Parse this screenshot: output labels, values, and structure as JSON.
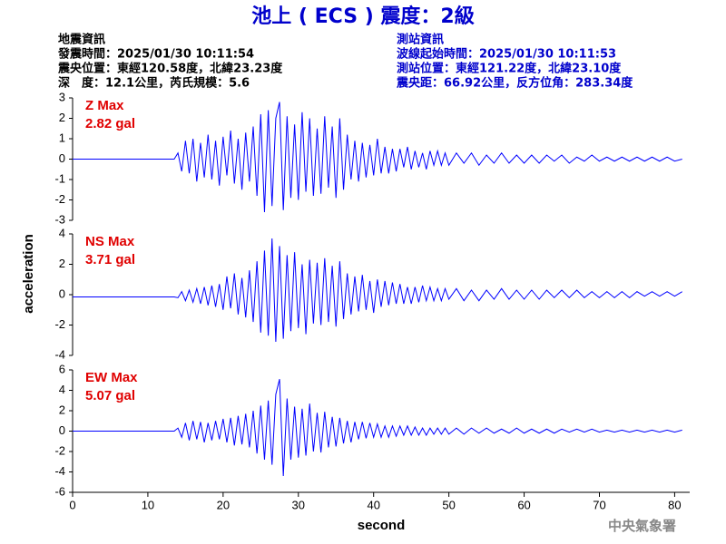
{
  "header": {
    "title": "池上 ( ECS ) 震度：2級",
    "quake_info": [
      "地震資訊",
      "發震時間：2025/01/30 10:11:54",
      "震央位置：東經120.58度，北緯23.23度",
      "深　度：12.1公里，芮氏規模：5.6"
    ],
    "station_info": [
      "測站資訊",
      "波線起始時間：2025/01/30 10:11:53",
      "測站位置：東經121.22度，北緯23.10度",
      "震央距：66.92公里，反方位角：283.34度"
    ],
    "footer": "中央氣象署"
  },
  "chart_data": [
    {
      "type": "line",
      "color": "#0000ff",
      "annotations": [
        "Z Max",
        "2.82 gal"
      ],
      "xlim": [
        0,
        82
      ],
      "ylim": [
        -3,
        3
      ],
      "yticks": [
        -3,
        -2,
        -1,
        0,
        1,
        2,
        3
      ],
      "x": [
        0,
        13.5,
        14,
        14.5,
        15,
        15.5,
        16,
        16.5,
        17,
        17.5,
        18,
        18.5,
        19,
        19.5,
        20,
        20.5,
        21,
        21.5,
        22,
        22.5,
        23,
        23.5,
        24,
        24.5,
        25,
        25.5,
        26,
        26.5,
        27,
        27.5,
        28,
        28.5,
        29,
        29.5,
        30,
        30.5,
        31,
        31.5,
        32,
        32.5,
        33,
        33.5,
        34,
        34.5,
        35,
        35.5,
        36,
        36.5,
        37,
        37.5,
        38,
        38.5,
        39,
        39.5,
        40,
        40.5,
        41,
        41.5,
        42,
        42.5,
        43,
        43.5,
        44,
        44.5,
        45,
        45.5,
        46,
        46.5,
        47,
        47.5,
        48,
        48.5,
        49,
        49.5,
        50,
        51,
        52,
        53,
        54,
        55,
        56,
        57,
        58,
        59,
        60,
        61,
        62,
        63,
        64,
        65,
        66,
        67,
        68,
        69,
        70,
        71,
        72,
        73,
        74,
        75,
        76,
        77,
        78,
        79,
        80,
        81
      ],
      "values": [
        0,
        0,
        0.3,
        -0.6,
        0.9,
        -0.7,
        1.0,
        -1.1,
        0.8,
        -0.9,
        1.2,
        -1.0,
        0.9,
        -1.3,
        1.1,
        -0.8,
        1.4,
        -1.2,
        1.0,
        -1.5,
        1.3,
        -1.1,
        1.6,
        -1.8,
        2.2,
        -2.6,
        2.4,
        -2.3,
        2.0,
        2.8,
        -2.5,
        2.1,
        -1.9,
        1.7,
        -2.0,
        2.3,
        -1.6,
        2.0,
        -1.8,
        1.5,
        -1.7,
        2.1,
        -1.4,
        1.6,
        -1.9,
        2.0,
        -1.5,
        1.2,
        -1.0,
        0.9,
        -1.1,
        0.8,
        -0.9,
        0.7,
        -0.8,
        1.0,
        -0.7,
        0.6,
        -0.7,
        0.5,
        -0.6,
        0.5,
        -0.4,
        0.6,
        -0.5,
        0.4,
        -0.4,
        0.3,
        -0.5,
        0.4,
        -0.3,
        0.4,
        -0.3,
        0.3,
        -0.3,
        0.3,
        -0.2,
        0.3,
        -0.3,
        0.2,
        -0.2,
        0.3,
        -0.2,
        0.2,
        -0.2,
        0.2,
        -0.2,
        0.2,
        -0.1,
        0.2,
        -0.2,
        0.1,
        -0.1,
        0.2,
        -0.1,
        0.1,
        -0.1,
        0.1,
        -0.1,
        0.1,
        -0.1,
        0.1,
        -0.1,
        0.1,
        -0.1,
        0.0
      ]
    },
    {
      "type": "line",
      "color": "#0000ff",
      "annotations": [
        "NS Max",
        "3.71 gal"
      ],
      "ylabel": "acceleration",
      "xlim": [
        0,
        82
      ],
      "ylim": [
        -4,
        4
      ],
      "yticks": [
        -4,
        -2,
        0,
        2,
        4
      ],
      "x": [
        0,
        13.5,
        14,
        14.5,
        15,
        15.5,
        16,
        16.5,
        17,
        17.5,
        18,
        18.5,
        19,
        19.5,
        20,
        20.5,
        21,
        21.5,
        22,
        22.5,
        23,
        23.5,
        24,
        24.5,
        25,
        25.5,
        26,
        26.5,
        27,
        27.5,
        28,
        28.5,
        29,
        29.5,
        30,
        30.5,
        31,
        31.5,
        32,
        32.5,
        33,
        33.5,
        34,
        34.5,
        35,
        35.5,
        36,
        36.5,
        37,
        37.5,
        38,
        38.5,
        39,
        39.5,
        40,
        40.5,
        41,
        41.5,
        42,
        42.5,
        43,
        43.5,
        44,
        44.5,
        45,
        45.5,
        46,
        46.5,
        47,
        47.5,
        48,
        48.5,
        49,
        49.5,
        50,
        51,
        52,
        53,
        54,
        55,
        56,
        57,
        58,
        59,
        60,
        61,
        62,
        63,
        64,
        65,
        66,
        67,
        68,
        69,
        70,
        71,
        72,
        73,
        74,
        75,
        76,
        77,
        78,
        79,
        80,
        81
      ],
      "values": [
        -0.15,
        -0.15,
        -0.2,
        0.2,
        -0.4,
        0.3,
        -0.5,
        0.4,
        -0.6,
        0.5,
        -0.7,
        0.6,
        -0.8,
        0.7,
        -1.0,
        1.2,
        -0.9,
        1.4,
        -1.3,
        1.1,
        -1.5,
        1.6,
        -1.8,
        2.2,
        -2.5,
        2.9,
        -2.7,
        3.7,
        -3.1,
        3.2,
        -2.9,
        2.6,
        -2.4,
        2.8,
        -2.2,
        2.0,
        -2.6,
        2.3,
        -1.9,
        2.1,
        -2.0,
        2.4,
        -1.8,
        1.9,
        -2.1,
        2.2,
        -1.6,
        1.4,
        -1.3,
        1.2,
        -1.1,
        1.3,
        -1.0,
        0.9,
        -1.2,
        1.0,
        -0.8,
        0.9,
        -0.7,
        0.8,
        -0.6,
        0.7,
        -0.6,
        0.5,
        -0.6,
        0.5,
        -0.5,
        0.6,
        -0.4,
        0.5,
        -0.4,
        0.4,
        -0.4,
        0.4,
        -0.3,
        0.4,
        -0.4,
        0.3,
        -0.4,
        0.3,
        -0.3,
        0.4,
        -0.3,
        0.3,
        -0.3,
        0.3,
        -0.3,
        0.3,
        -0.2,
        0.3,
        -0.2,
        0.3,
        -0.2,
        0.2,
        -0.2,
        0.2,
        -0.2,
        0.2,
        -0.2,
        0.2,
        -0.1,
        0.2,
        -0.1,
        0.2,
        -0.1,
        0.2
      ]
    },
    {
      "type": "line",
      "color": "#0000ff",
      "annotations": [
        "EW Max",
        "5.07 gal"
      ],
      "xlabel": "second",
      "xlim": [
        0,
        82
      ],
      "xticks": [
        0,
        10,
        20,
        30,
        40,
        50,
        60,
        70,
        80
      ],
      "ylim": [
        -6,
        6
      ],
      "yticks": [
        -6,
        -4,
        -2,
        0,
        2,
        4,
        6
      ],
      "x": [
        0,
        13.5,
        14,
        14.5,
        15,
        15.5,
        16,
        16.5,
        17,
        17.5,
        18,
        18.5,
        19,
        19.5,
        20,
        20.5,
        21,
        21.5,
        22,
        22.5,
        23,
        23.5,
        24,
        24.5,
        25,
        25.5,
        26,
        26.5,
        27,
        27.5,
        28,
        28.5,
        29,
        29.5,
        30,
        30.5,
        31,
        31.5,
        32,
        32.5,
        33,
        33.5,
        34,
        34.5,
        35,
        35.5,
        36,
        36.5,
        37,
        37.5,
        38,
        38.5,
        39,
        39.5,
        40,
        40.5,
        41,
        41.5,
        42,
        42.5,
        43,
        43.5,
        44,
        44.5,
        45,
        45.5,
        46,
        46.5,
        47,
        47.5,
        48,
        48.5,
        49,
        49.5,
        50,
        51,
        52,
        53,
        54,
        55,
        56,
        57,
        58,
        59,
        60,
        61,
        62,
        63,
        64,
        65,
        66,
        67,
        68,
        69,
        70,
        71,
        72,
        73,
        74,
        75,
        76,
        77,
        78,
        79,
        80,
        81
      ],
      "values": [
        0,
        0,
        0.3,
        -0.6,
        0.8,
        -0.9,
        1.0,
        -0.8,
        0.9,
        -1.1,
        0.8,
        -0.9,
        1.0,
        -0.8,
        1.2,
        -1.1,
        1.3,
        -1.4,
        1.5,
        -1.3,
        1.7,
        -1.6,
        2.0,
        -2.2,
        2.5,
        -2.8,
        3.0,
        -3.3,
        3.6,
        5.1,
        -4.4,
        3.2,
        -2.8,
        2.4,
        -2.6,
        2.2,
        -2.4,
        2.7,
        -2.0,
        1.8,
        -2.1,
        1.9,
        -1.6,
        1.4,
        -1.5,
        1.3,
        -1.2,
        1.0,
        -1.1,
        0.9,
        -0.8,
        0.9,
        -0.7,
        0.8,
        -0.6,
        0.7,
        -0.6,
        0.5,
        -0.6,
        0.5,
        -0.5,
        0.5,
        -0.4,
        0.5,
        -0.4,
        0.4,
        -0.4,
        0.3,
        -0.4,
        0.3,
        -0.3,
        0.3,
        -0.3,
        0.3,
        -0.3,
        0.3,
        -0.3,
        0.3,
        -0.2,
        0.3,
        -0.2,
        0.2,
        -0.2,
        0.3,
        -0.2,
        0.2,
        -0.2,
        0.2,
        -0.2,
        0.2,
        -0.1,
        0.2,
        -0.1,
        0.2,
        -0.1,
        0.1,
        -0.1,
        0.1,
        -0.1,
        0.1,
        -0.1,
        0.1,
        -0.1,
        0.1,
        -0.1,
        0.1
      ]
    }
  ]
}
